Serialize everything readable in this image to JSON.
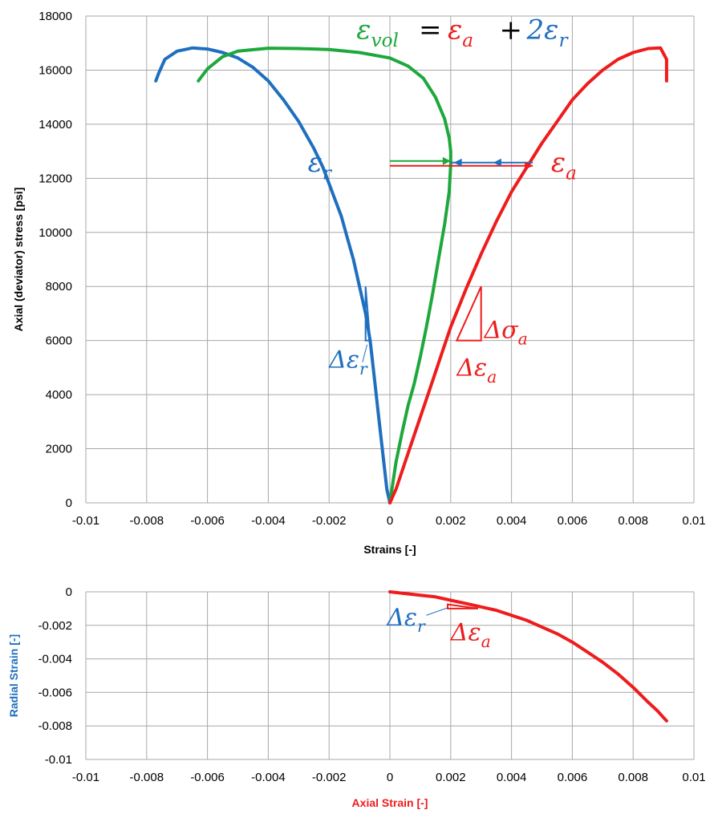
{
  "colors": {
    "axial": "#ee1c1c",
    "radial": "#1f6fbf",
    "volumetric": "#1ea83c",
    "grid": "#a8a8a8",
    "text": "#000000"
  },
  "chart_data": [
    {
      "type": "line",
      "xlabel": "Strains [-]",
      "ylabel": "Axial (deviator) stress [psi]",
      "xlim": [
        -0.01,
        0.01
      ],
      "ylim": [
        0,
        18000
      ],
      "x_ticks": [
        -0.01,
        -0.008,
        -0.006,
        -0.004,
        -0.002,
        0,
        0.002,
        0.004,
        0.006,
        0.008,
        0.01
      ],
      "x_tick_labels": [
        "-0.01",
        "-0.008",
        "-0.006",
        "-0.004",
        "-0.002",
        "0",
        "0.002",
        "0.004",
        "0.006",
        "0.008",
        "0.01"
      ],
      "y_ticks": [
        0,
        2000,
        4000,
        6000,
        8000,
        10000,
        12000,
        14000,
        16000,
        18000
      ],
      "y_tick_labels": [
        "0",
        "2000",
        "4000",
        "6000",
        "8000",
        "10000",
        "12000",
        "14000",
        "16000",
        "18000"
      ],
      "grid": true,
      "series": [
        {
          "color": "#1f6fbf",
          "points": [
            [
              0,
              0
            ],
            [
              -0.0001,
              500
            ],
            [
              -0.0002,
              1500
            ],
            [
              -0.0003,
              2500
            ],
            [
              -0.0004,
              3500
            ],
            [
              -0.0005,
              4500
            ],
            [
              -0.0006,
              5500
            ],
            [
              -0.00065,
              6000
            ],
            [
              -0.0008,
              7000
            ],
            [
              -0.001,
              8000
            ],
            [
              -0.0012,
              9000
            ],
            [
              -0.0014,
              9800
            ],
            [
              -0.0016,
              10600
            ],
            [
              -0.0018,
              11200
            ],
            [
              -0.002,
              11800
            ],
            [
              -0.0022,
              12400
            ],
            [
              -0.0025,
              13100
            ],
            [
              -0.003,
              14100
            ],
            [
              -0.0035,
              14900
            ],
            [
              -0.004,
              15600
            ],
            [
              -0.0045,
              16100
            ],
            [
              -0.005,
              16450
            ],
            [
              -0.0055,
              16650
            ],
            [
              -0.006,
              16780
            ],
            [
              -0.0065,
              16820
            ],
            [
              -0.007,
              16700
            ],
            [
              -0.0074,
              16400
            ],
            [
              -0.0076,
              15900
            ],
            [
              -0.0077,
              15600
            ]
          ]
        },
        {
          "color": "#1ea83c",
          "points": [
            [
              0,
              0
            ],
            [
              0.0002,
              1500
            ],
            [
              0.0004,
              2600
            ],
            [
              0.0006,
              3600
            ],
            [
              0.0008,
              4400
            ],
            [
              0.001,
              5400
            ],
            [
              0.0012,
              6500
            ],
            [
              0.0014,
              7700
            ],
            [
              0.0016,
              9000
            ],
            [
              0.0018,
              10300
            ],
            [
              0.00195,
              11500
            ],
            [
              0.002,
              12500
            ],
            [
              0.002,
              13000
            ],
            [
              0.00195,
              13500
            ],
            [
              0.0018,
              14200
            ],
            [
              0.0015,
              15000
            ],
            [
              0.0011,
              15700
            ],
            [
              0.0006,
              16150
            ],
            [
              0.0,
              16450
            ],
            [
              -0.001,
              16650
            ],
            [
              -0.002,
              16760
            ],
            [
              -0.003,
              16800
            ],
            [
              -0.004,
              16810
            ],
            [
              -0.005,
              16700
            ],
            [
              -0.0055,
              16500
            ],
            [
              -0.006,
              16050
            ],
            [
              -0.0063,
              15600
            ]
          ]
        },
        {
          "color": "#ee1c1c",
          "points": [
            [
              0,
              0
            ],
            [
              0.0002,
              500
            ],
            [
              0.0005,
              1500
            ],
            [
              0.0008,
              2500
            ],
            [
              0.0011,
              3500
            ],
            [
              0.0014,
              4500
            ],
            [
              0.0017,
              5500
            ],
            [
              0.002,
              6500
            ],
            [
              0.0025,
              7900
            ],
            [
              0.003,
              9200
            ],
            [
              0.0035,
              10400
            ],
            [
              0.004,
              11500
            ],
            [
              0.0045,
              12400
            ],
            [
              0.005,
              13300
            ],
            [
              0.0055,
              14100
            ],
            [
              0.006,
              14900
            ],
            [
              0.0065,
              15500
            ],
            [
              0.007,
              16000
            ],
            [
              0.0075,
              16400
            ],
            [
              0.008,
              16650
            ],
            [
              0.0085,
              16800
            ],
            [
              0.0089,
              16820
            ],
            [
              0.0091,
              16400
            ],
            [
              0.0091,
              15600
            ]
          ]
        }
      ],
      "annotations": [
        {
          "text": "ε",
          "sub": "vol",
          "color": "#1ea83c",
          "x": -0.0011,
          "y": 17150
        },
        {
          "text": "=",
          "sub": "",
          "color": "#000000",
          "x": 0.00095,
          "y": 17150
        },
        {
          "text": "ε",
          "sub": "a",
          "color": "#ee1c1c",
          "x": 0.0019,
          "y": 17150
        },
        {
          "text": "+",
          "sub": "",
          "color": "#000000",
          "x": 0.0036,
          "y": 17150
        },
        {
          "text": "2ε",
          "sub": "r",
          "color": "#1f6fbf",
          "x": 0.0045,
          "y": 17150
        },
        {
          "text": "ε",
          "sub": "r",
          "color": "#1f6fbf",
          "x": -0.0027,
          "y": 12250
        },
        {
          "text": "ε",
          "sub": "a",
          "color": "#ee1c1c",
          "x": 0.0053,
          "y": 12250
        },
        {
          "text": "Δσ",
          "sub": "a",
          "color": "#ee1c1c",
          "x": 0.0031,
          "y": 6100
        },
        {
          "text": "Δε",
          "sub": "a",
          "color": "#ee1c1c",
          "x": 0.0022,
          "y": 4700
        },
        {
          "text": "Δε",
          "sub": "r",
          "color": "#1f6fbf",
          "x": -0.002,
          "y": 5000
        }
      ]
    },
    {
      "type": "line",
      "xlabel": "Axial Strain [-]",
      "ylabel": "Radial Strain [-]",
      "xlim": [
        -0.01,
        0.01
      ],
      "ylim": [
        -0.01,
        0
      ],
      "x_ticks": [
        -0.01,
        -0.008,
        -0.006,
        -0.004,
        -0.002,
        0,
        0.002,
        0.004,
        0.006,
        0.008,
        0.01
      ],
      "x_tick_labels": [
        "-0.01",
        "-0.008",
        "-0.006",
        "-0.004",
        "-0.002",
        "0",
        "0.002",
        "0.004",
        "0.006",
        "0.008",
        "0.01"
      ],
      "y_ticks": [
        0,
        -0.002,
        -0.004,
        -0.006,
        -0.008,
        -0.01
      ],
      "y_tick_labels": [
        "0",
        "-0.002",
        "-0.004",
        "-0.006",
        "-0.008",
        "-0.01"
      ],
      "grid": true,
      "series": [
        {
          "color": "#ee1c1c",
          "points": [
            [
              0,
              0
            ],
            [
              0.0005,
              -0.0001
            ],
            [
              0.001,
              -0.0002
            ],
            [
              0.0015,
              -0.0003
            ],
            [
              0.002,
              -0.0005
            ],
            [
              0.0025,
              -0.0007
            ],
            [
              0.003,
              -0.0009
            ],
            [
              0.0035,
              -0.0011
            ],
            [
              0.004,
              -0.0014
            ],
            [
              0.0045,
              -0.0017
            ],
            [
              0.005,
              -0.0021
            ],
            [
              0.0055,
              -0.0025
            ],
            [
              0.006,
              -0.003
            ],
            [
              0.0065,
              -0.0036
            ],
            [
              0.007,
              -0.0042
            ],
            [
              0.0075,
              -0.0049
            ],
            [
              0.008,
              -0.0057
            ],
            [
              0.0085,
              -0.0066
            ],
            [
              0.0088,
              -0.0071
            ],
            [
              0.009,
              -0.0075
            ],
            [
              0.0091,
              -0.0077
            ]
          ]
        }
      ],
      "annotations": [
        {
          "text": "Δε",
          "sub": "r",
          "color": "#1f6fbf",
          "x": -0.0001,
          "y": -0.002
        },
        {
          "text": "Δε",
          "sub": "a",
          "color": "#ee1c1c",
          "x": 0.002,
          "y": -0.0029
        }
      ]
    }
  ]
}
